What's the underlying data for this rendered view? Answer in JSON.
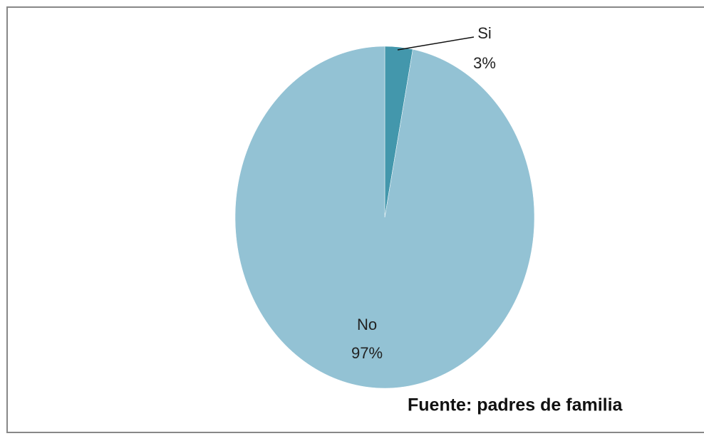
{
  "chart_data": {
    "type": "pie",
    "categories": [
      "Si",
      "No"
    ],
    "values": [
      3,
      97
    ],
    "value_labels": [
      "3%",
      "97%"
    ],
    "colors": [
      "#4397ac",
      "#93c2d4"
    ],
    "source": "Fuente: padres de familia"
  }
}
